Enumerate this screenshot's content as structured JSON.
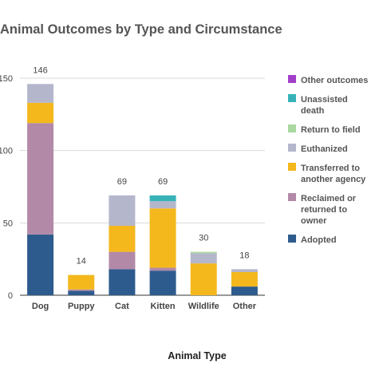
{
  "chart_data": {
    "type": "bar",
    "stacked": true,
    "title": "Animal Outcomes by Type and Circumstance",
    "xlabel": "Animal Type",
    "ylabel": "",
    "ylim": [
      0,
      150
    ],
    "yticks": [
      "0",
      "50",
      "100",
      "150"
    ],
    "grid": true,
    "legend_position": "right",
    "categories": [
      "Dog",
      "Puppy",
      "Cat",
      "Kitten",
      "Wildlife",
      "Other"
    ],
    "totals": [
      "146",
      "14",
      "69",
      "69",
      "30",
      "18"
    ],
    "series": [
      {
        "name": "Adopted",
        "color": "#2e5b8e",
        "values": [
          42,
          3,
          18,
          17,
          0,
          6
        ]
      },
      {
        "name": "Reclaimed or returned to owner",
        "color": "#b389a8",
        "values": [
          77,
          1,
          12,
          2,
          0,
          0
        ]
      },
      {
        "name": "Transferred to another agency",
        "color": "#f4b81d",
        "values": [
          14,
          10,
          18,
          41,
          22,
          10
        ]
      },
      {
        "name": "Euthanized",
        "color": "#b4b6cc",
        "values": [
          13,
          0,
          21,
          5,
          7,
          2
        ]
      },
      {
        "name": "Return to field",
        "color": "#a9d8a0",
        "values": [
          0,
          0,
          0,
          0,
          1,
          0
        ]
      },
      {
        "name": "Unassisted death",
        "color": "#37b3b8",
        "values": [
          0,
          0,
          0,
          4,
          0,
          0
        ]
      },
      {
        "name": "Other outcomes",
        "color": "#a23ec9",
        "values": [
          0,
          0,
          0,
          0,
          0,
          0
        ]
      }
    ],
    "legend_order": [
      "Other outcomes",
      "Unassisted death",
      "Return to field",
      "Euthanized",
      "Transferred to another agency",
      "Reclaimed or returned to owner",
      "Adopted"
    ],
    "legend_lines": {
      "Other outcomes": [
        "Other outcomes"
      ],
      "Unassisted death": [
        "Unassisted",
        "death"
      ],
      "Return to field": [
        "Return to field"
      ],
      "Euthanized": [
        "Euthanized"
      ],
      "Transferred to another agency": [
        "Transferred to",
        "another agency"
      ],
      "Reclaimed or returned to owner": [
        "Reclaimed or",
        "returned to",
        "owner"
      ],
      "Adopted": [
        "Adopted"
      ]
    }
  }
}
